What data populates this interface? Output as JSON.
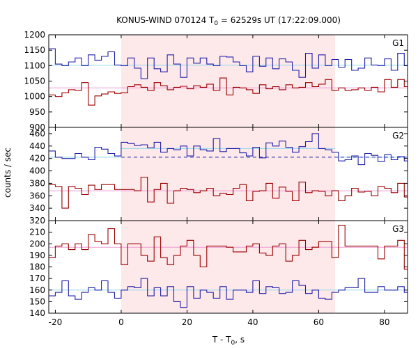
{
  "title": {
    "prefix": "KONUS-WIND 070124 T",
    "sub": "0",
    "suffix": " = 62529s UT (17:22:09.000)"
  },
  "ylabel": "counts / sec",
  "xlabel": {
    "prefix": "T - T",
    "sub": "0",
    "suffix": ", s"
  },
  "colors": {
    "blue": "#1f1fa8",
    "red": "#9b0000",
    "light_blue": "#8fd8ee",
    "pink": "#ee9bd4",
    "shade": "#fde8ea"
  },
  "chart_data": [
    {
      "type": "line",
      "label": "G1",
      "xlim": [
        -22,
        87
      ],
      "ylim": [
        900,
        1200
      ],
      "yticks": [
        900,
        950,
        1000,
        1050,
        1100,
        1150,
        1200
      ],
      "shade": [
        0,
        65
      ],
      "x_edges": [
        -22,
        -20,
        -18,
        -16,
        -14,
        -12,
        -10,
        -8,
        -6,
        -4,
        -2,
        0,
        2,
        4,
        6,
        8,
        10,
        12,
        14,
        16,
        18,
        20,
        22,
        24,
        26,
        28,
        30,
        32,
        34,
        36,
        38,
        40,
        42,
        44,
        46,
        48,
        50,
        52,
        54,
        56,
        58,
        60,
        62,
        64,
        66,
        68,
        70,
        72,
        74,
        76,
        78,
        80,
        82,
        84,
        86,
        87
      ],
      "series": [
        {
          "color": "#1f1fa8",
          "values": [
            1155,
            1105,
            1100,
            1112,
            1125,
            1100,
            1135,
            1118,
            1130,
            1145,
            1102,
            1100,
            1125,
            1092,
            1058,
            1125,
            1090,
            1080,
            1135,
            1105,
            1062,
            1125,
            1108,
            1125,
            1105,
            1100,
            1130,
            1128,
            1112,
            1100,
            1080,
            1130,
            1098,
            1125,
            1090,
            1122,
            1112,
            1085,
            1062,
            1140,
            1092,
            1135,
            1100,
            1120,
            1095,
            1120,
            1085,
            1092,
            1125,
            1102,
            1100,
            1122,
            1085,
            1140,
            1100
          ]
        },
        {
          "color": "#9b0000",
          "values": [
            1005,
            1000,
            1012,
            1022,
            1020,
            1045,
            972,
            1002,
            1008,
            1015,
            1010,
            1012,
            1032,
            1038,
            1030,
            1020,
            1045,
            1035,
            1022,
            1030,
            1033,
            1025,
            1035,
            1030,
            1040,
            1020,
            1060,
            1005,
            1030,
            1028,
            1022,
            1010,
            1038,
            1025,
            1032,
            1022,
            1038,
            1028,
            1030,
            1045,
            1032,
            1040,
            1055,
            1020,
            1028,
            1020,
            1022,
            1028,
            1020,
            1030,
            1015,
            1055,
            1030,
            1055,
            1032
          ]
        }
      ],
      "fits": [
        {
          "color": "#8fd8ee",
          "y": 1102,
          "style": "solid",
          "x": [
            -22,
            87
          ]
        },
        {
          "color": "#ee9bd4",
          "y": 1028,
          "style": "solid",
          "x": [
            -22,
            87
          ]
        }
      ]
    },
    {
      "type": "line",
      "label": "G2",
      "xlim": [
        -22,
        87
      ],
      "ylim": [
        320,
        470
      ],
      "yticks": [
        320,
        340,
        360,
        380,
        400,
        420,
        440,
        460
      ],
      "shade": [
        0,
        65
      ],
      "x_edges": [
        -22,
        -20,
        -18,
        -16,
        -14,
        -12,
        -10,
        -8,
        -6,
        -4,
        -2,
        0,
        2,
        4,
        6,
        8,
        10,
        12,
        14,
        16,
        18,
        20,
        22,
        24,
        26,
        28,
        30,
        32,
        34,
        36,
        38,
        40,
        42,
        44,
        46,
        48,
        50,
        52,
        54,
        56,
        58,
        60,
        62,
        64,
        66,
        68,
        70,
        72,
        74,
        76,
        78,
        80,
        82,
        84,
        86,
        87
      ],
      "series": [
        {
          "color": "#1f1fa8",
          "values": [
            432,
            422,
            420,
            420,
            428,
            422,
            418,
            438,
            435,
            428,
            424,
            446,
            444,
            441,
            442,
            437,
            446,
            430,
            436,
            434,
            440,
            424,
            440,
            434,
            432,
            452,
            431,
            436,
            436,
            429,
            424,
            438,
            421,
            445,
            440,
            448,
            438,
            430,
            439,
            447,
            460,
            436,
            434,
            430,
            416,
            418,
            424,
            410,
            428,
            425,
            415,
            426,
            418,
            423,
            416
          ]
        },
        {
          "color": "#9b0000",
          "values": [
            378,
            375,
            340,
            375,
            372,
            362,
            377,
            370,
            378,
            378,
            370,
            370,
            370,
            368,
            390,
            350,
            370,
            380,
            348,
            368,
            372,
            370,
            365,
            368,
            372,
            360,
            364,
            362,
            372,
            378,
            352,
            367,
            368,
            380,
            356,
            374,
            367,
            352,
            382,
            365,
            368,
            367,
            360,
            368,
            352,
            360,
            372,
            366,
            367,
            360,
            375,
            372,
            365,
            380,
            358
          ]
        }
      ],
      "fits": [
        {
          "color": "#8fd8ee",
          "y": 422,
          "style": "solid",
          "x": [
            -22,
            0
          ]
        },
        {
          "color": "#8fd8ee",
          "y": 436,
          "style": "solid",
          "x": [
            0,
            65
          ]
        },
        {
          "color": "#8fd8ee",
          "y": 422,
          "style": "solid",
          "x": [
            65,
            87
          ]
        },
        {
          "color": "#1f1fa8",
          "y": 422,
          "style": "dashed",
          "x": [
            0,
            87
          ]
        },
        {
          "color": "#ee9bd4",
          "y": 368,
          "style": "solid",
          "x": [
            -22,
            87
          ]
        }
      ]
    },
    {
      "type": "line",
      "label": "G3",
      "xlim": [
        -22,
        87
      ],
      "ylim": [
        140,
        220
      ],
      "yticks": [
        140,
        150,
        160,
        170,
        180,
        190,
        200,
        210,
        220
      ],
      "shade": [
        0,
        65
      ],
      "x_edges": [
        -22,
        -20,
        -18,
        -16,
        -14,
        -12,
        -10,
        -8,
        -6,
        -4,
        -2,
        0,
        2,
        4,
        6,
        8,
        10,
        12,
        14,
        16,
        18,
        20,
        22,
        24,
        26,
        28,
        30,
        32,
        34,
        36,
        38,
        40,
        42,
        44,
        46,
        48,
        50,
        52,
        54,
        56,
        58,
        60,
        62,
        64,
        66,
        68,
        70,
        72,
        74,
        76,
        78,
        80,
        82,
        84,
        86,
        87
      ],
      "series": [
        {
          "color": "#1f1fa8",
          "values": [
            155,
            158,
            168,
            155,
            152,
            158,
            162,
            160,
            168,
            158,
            153,
            160,
            163,
            162,
            170,
            155,
            162,
            155,
            163,
            150,
            145,
            163,
            153,
            160,
            158,
            153,
            163,
            152,
            160,
            160,
            158,
            168,
            157,
            163,
            162,
            157,
            158,
            168,
            164,
            157,
            160,
            153,
            152,
            158,
            160,
            162,
            162,
            170,
            158,
            158,
            163,
            160,
            160,
            163,
            158
          ]
        },
        {
          "color": "#9b0000",
          "values": [
            188,
            198,
            200,
            195,
            200,
            195,
            208,
            202,
            200,
            213,
            200,
            182,
            200,
            200,
            190,
            185,
            206,
            188,
            182,
            190,
            198,
            203,
            190,
            180,
            198,
            198,
            198,
            197,
            193,
            193,
            198,
            200,
            192,
            190,
            198,
            200,
            185,
            190,
            203,
            195,
            197,
            202,
            202,
            188,
            216,
            198,
            198,
            198,
            198,
            198,
            187,
            198,
            198,
            203,
            178
          ]
        }
      ],
      "fits": [
        {
          "color": "#8fd8ee",
          "y": 160,
          "style": "solid",
          "x": [
            -22,
            87
          ]
        },
        {
          "color": "#ee9bd4",
          "y": 197,
          "style": "solid",
          "x": [
            -22,
            87
          ]
        }
      ]
    }
  ],
  "xticks": [
    -20,
    0,
    20,
    40,
    60,
    80
  ]
}
